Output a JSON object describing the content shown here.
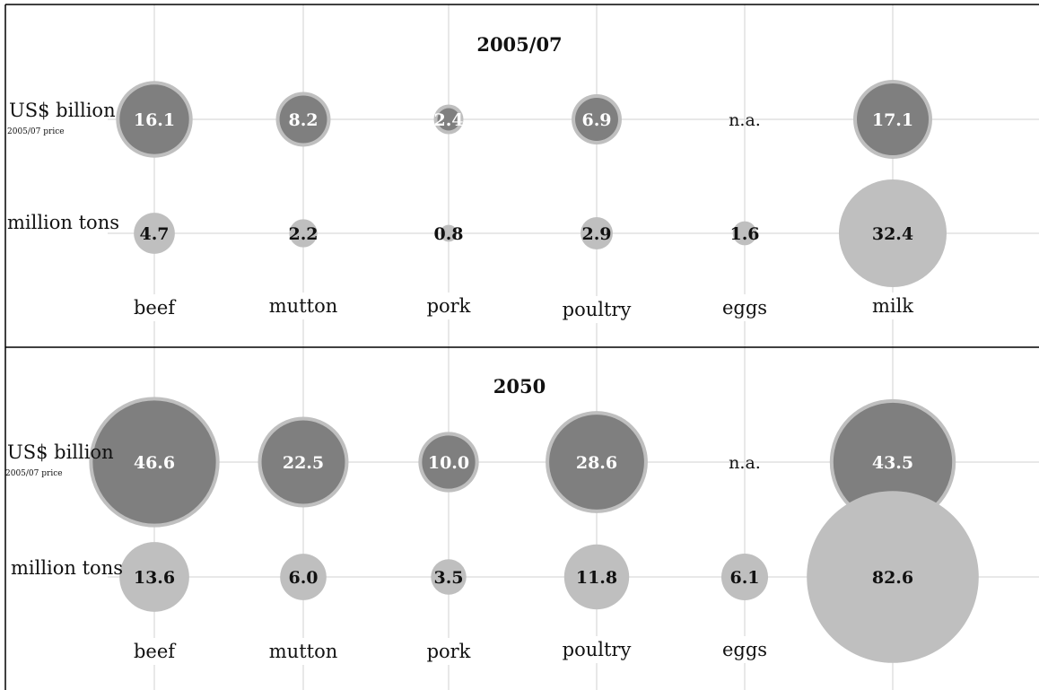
{
  "chart_data": [
    {
      "type": "bubble",
      "title": "2005/07",
      "categories": [
        "beef",
        "mutton",
        "pork",
        "poultry",
        "eggs",
        "milk"
      ],
      "series": [
        {
          "label": "US$ billion",
          "sublabel": "2005/07 price",
          "values": [
            16.1,
            8.2,
            2.4,
            6.9,
            null,
            17.1
          ],
          "display": [
            "16.1",
            "8.2",
            "2.4",
            "6.9",
            "n.a.",
            "17.1"
          ],
          "fill": "#7f7f7f",
          "stroke": "#bfbfbf",
          "label_color": "#ffffff"
        },
        {
          "label": "million tons",
          "values": [
            4.7,
            2.2,
            0.8,
            2.9,
            1.6,
            32.4
          ],
          "display": [
            "4.7",
            "2.2",
            "0.8",
            "2.9",
            "1.6",
            "32.4"
          ],
          "fill": "#bfbfbf",
          "label_color": "#111111"
        }
      ]
    },
    {
      "type": "bubble",
      "title": "2050",
      "categories": [
        "beef",
        "mutton",
        "pork",
        "poultry",
        "eggs",
        "milk"
      ],
      "series": [
        {
          "label": "US$ billion",
          "sublabel": "2005/07 price",
          "values": [
            46.6,
            22.5,
            10.0,
            28.6,
            null,
            43.5
          ],
          "display": [
            "46.6",
            "22.5",
            "10.0",
            "28.6",
            "n.a.",
            "43.5"
          ],
          "fill": "#7f7f7f",
          "stroke": "#bfbfbf",
          "label_color": "#ffffff"
        },
        {
          "label": "million tons",
          "values": [
            13.6,
            6.0,
            3.5,
            11.8,
            6.1,
            82.6
          ],
          "display": [
            "13.6",
            "6.0",
            "3.5",
            "11.8",
            "6.1",
            "82.6"
          ],
          "fill": "#bfbfbf",
          "label_color": "#111111"
        }
      ]
    }
  ],
  "colors": {
    "gridline": "#d9d9d9",
    "border": "#000000",
    "text": "#111111"
  }
}
